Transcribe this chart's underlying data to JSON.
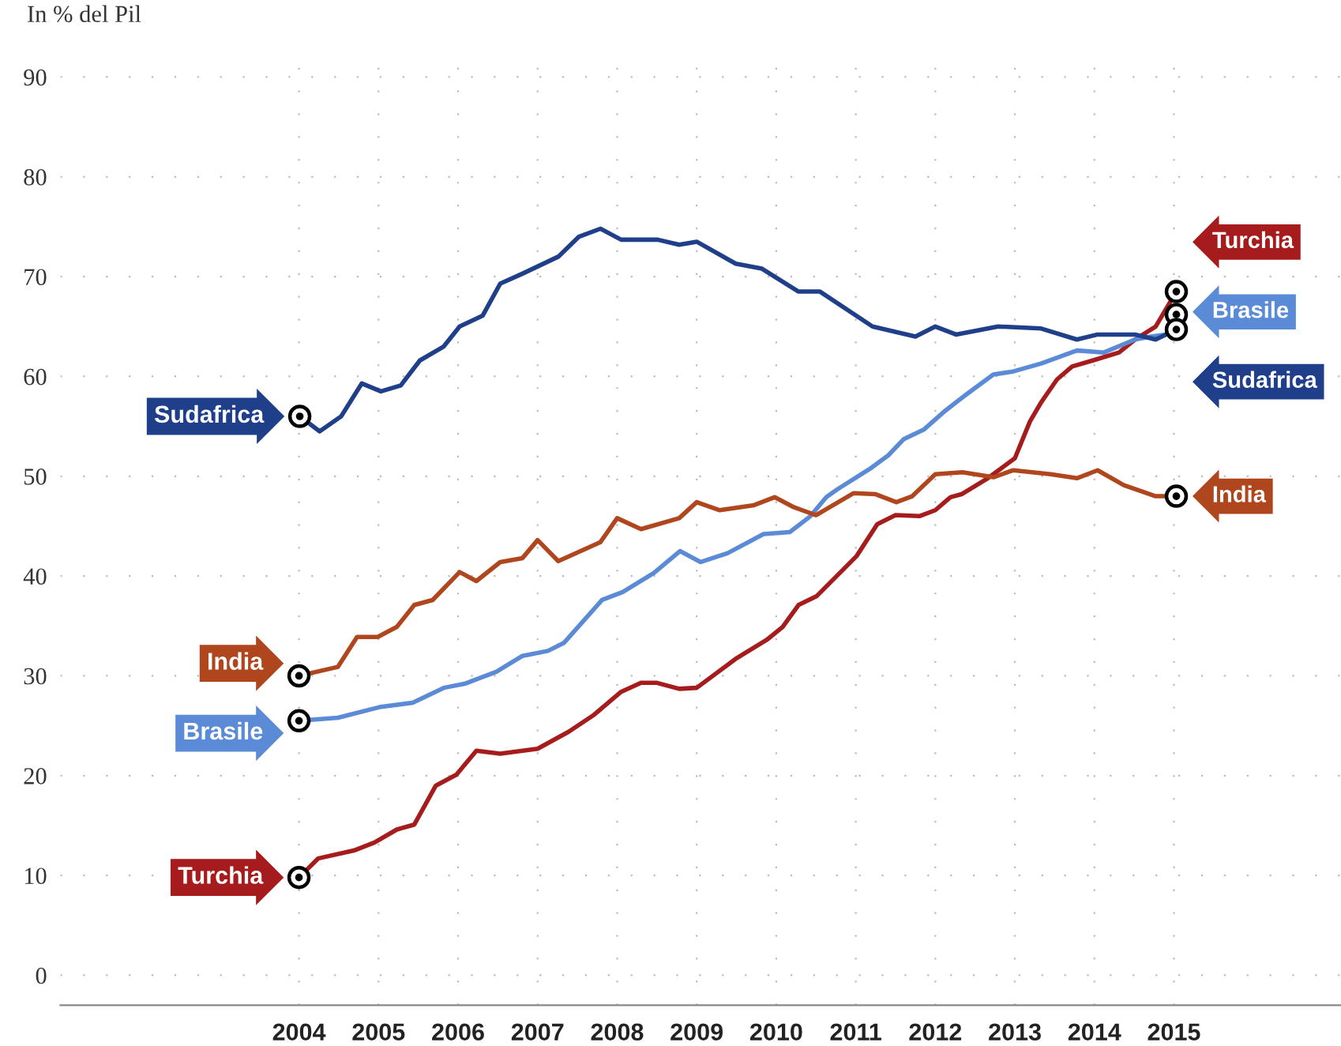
{
  "chart_data": {
    "type": "line",
    "ylabel": "In % del Pil",
    "xlim": [
      2001.0,
      2017.1
    ],
    "ylim": [
      -3,
      93
    ],
    "xticks": [
      2004,
      2005,
      2006,
      2007,
      2008,
      2009,
      2010,
      2011,
      2012,
      2013,
      2014,
      2015
    ],
    "yticks": [
      0,
      10,
      20,
      30,
      40,
      50,
      60,
      70,
      80,
      90
    ],
    "grid": true,
    "legend": false,
    "line_style": "solid",
    "series": [
      {
        "name": "Turchia",
        "color": "#a61c1c",
        "x": [
          2004.0,
          2004.24,
          2004.69,
          2004.95,
          2005.23,
          2005.45,
          2005.72,
          2005.98,
          2006.23,
          2006.53,
          2007.0,
          2007.39,
          2007.71,
          2008.05,
          2008.3,
          2008.5,
          2008.78,
          2009.0,
          2009.49,
          2009.88,
          2010.08,
          2010.28,
          2010.51,
          2011.01,
          2011.27,
          2011.5,
          2011.8,
          2012.0,
          2012.19,
          2012.33,
          2012.66,
          2013.0,
          2013.19,
          2013.33,
          2013.53,
          2013.72,
          2013.98,
          2014.31,
          2014.51,
          2014.77,
          2015.03
        ],
        "values": [
          9.8,
          11.7,
          12.5,
          13.3,
          14.6,
          15.1,
          19.0,
          20.1,
          22.5,
          22.2,
          22.7,
          24.4,
          26.1,
          28.4,
          29.3,
          29.3,
          28.7,
          28.8,
          31.7,
          33.6,
          34.9,
          37.1,
          38.0,
          42.0,
          45.2,
          46.1,
          46.0,
          46.6,
          47.9,
          48.2,
          49.8,
          51.8,
          55.5,
          57.4,
          59.7,
          61.0,
          61.6,
          62.4,
          63.7,
          65.0,
          68.5
        ]
      },
      {
        "name": "Brasile",
        "color": "#5b8bd6",
        "x": [
          2004.0,
          2004.49,
          2005.03,
          2005.43,
          2005.82,
          2006.08,
          2006.48,
          2006.81,
          2007.13,
          2007.33,
          2007.81,
          2008.07,
          2008.46,
          2008.79,
          2009.05,
          2009.39,
          2009.84,
          2010.17,
          2010.43,
          2010.63,
          2010.77,
          2011.17,
          2011.41,
          2011.6,
          2011.86,
          2012.13,
          2012.39,
          2012.73,
          2012.98,
          2013.33,
          2013.78,
          2014.12,
          2014.51,
          2014.71,
          2014.9,
          2015.03
        ],
        "values": [
          25.5,
          25.8,
          26.9,
          27.3,
          28.8,
          29.2,
          30.4,
          32.0,
          32.5,
          33.3,
          37.6,
          38.4,
          40.3,
          42.5,
          41.4,
          42.3,
          44.2,
          44.4,
          46.0,
          47.9,
          48.7,
          50.7,
          52.1,
          53.7,
          54.7,
          56.6,
          58.2,
          60.2,
          60.5,
          61.3,
          62.6,
          62.4,
          63.7,
          64.0,
          64.2,
          66.2
        ]
      },
      {
        "name": "India",
        "color": "#b0461e",
        "x": [
          2004.0,
          2004.49,
          2004.73,
          2004.99,
          2005.23,
          2005.45,
          2005.68,
          2006.02,
          2006.23,
          2006.53,
          2006.81,
          2007.0,
          2007.26,
          2007.79,
          2008.0,
          2008.3,
          2008.78,
          2009.0,
          2009.29,
          2009.72,
          2009.98,
          2010.22,
          2010.5,
          2010.97,
          2011.25,
          2011.51,
          2011.71,
          2012.0,
          2012.34,
          2012.73,
          2012.98,
          2013.45,
          2013.78,
          2014.04,
          2014.37,
          2014.77,
          2015.03
        ],
        "values": [
          30.0,
          30.9,
          33.9,
          33.9,
          34.9,
          37.1,
          37.6,
          40.4,
          39.5,
          41.4,
          41.8,
          43.6,
          41.5,
          43.4,
          45.8,
          44.7,
          45.8,
          47.4,
          46.6,
          47.1,
          47.9,
          46.9,
          46.1,
          48.3,
          48.2,
          47.4,
          48.0,
          50.2,
          50.4,
          49.9,
          50.6,
          50.2,
          49.8,
          50.6,
          49.1,
          48.0,
          48.0
        ]
      },
      {
        "name": "Sudafrica",
        "color": "#1f3f8a",
        "x": [
          2004.01,
          2004.26,
          2004.53,
          2004.79,
          2005.03,
          2005.28,
          2005.52,
          2005.82,
          2006.02,
          2006.31,
          2006.53,
          2006.81,
          2007.26,
          2007.52,
          2007.79,
          2008.05,
          2008.51,
          2008.78,
          2009.0,
          2009.49,
          2009.82,
          2010.28,
          2010.55,
          2011.21,
          2011.75,
          2012.0,
          2012.26,
          2012.79,
          2013.33,
          2013.78,
          2014.04,
          2014.51,
          2014.77,
          2015.03
        ],
        "values": [
          56.0,
          54.5,
          56.0,
          59.3,
          58.5,
          59.1,
          61.6,
          63.0,
          65.0,
          66.1,
          69.3,
          70.3,
          72.0,
          74.0,
          74.8,
          73.7,
          73.7,
          73.2,
          73.5,
          71.3,
          70.8,
          68.5,
          68.5,
          65.0,
          64.0,
          65.0,
          64.2,
          65.0,
          64.8,
          63.7,
          64.2,
          64.2,
          63.7,
          64.7
        ]
      }
    ]
  }
}
